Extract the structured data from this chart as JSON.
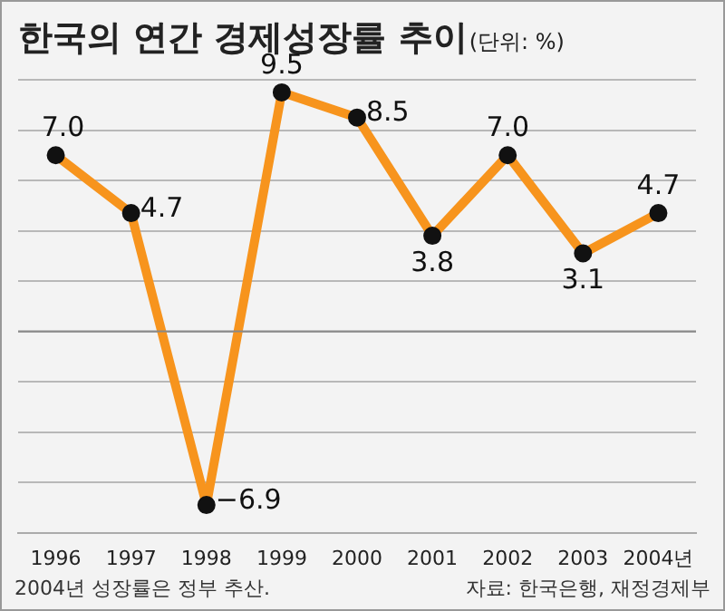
{
  "chart_data": {
    "type": "line",
    "title": "한국의 연간 경제성장률 추이",
    "subtitle": "(단위: %)",
    "categories": [
      "1996",
      "1997",
      "1998",
      "1999",
      "2000",
      "2001",
      "2002",
      "2003",
      "2004년"
    ],
    "series": [
      {
        "color": "#f7941d",
        "values": [
          7.0,
          4.7,
          -6.9,
          9.5,
          8.5,
          3.8,
          7.0,
          3.1,
          4.7
        ],
        "value_labels": [
          "7.0",
          "4.7",
          "−6.9",
          "9.5",
          "8.5",
          "3.8",
          "7.0",
          "3.1",
          "4.7"
        ]
      }
    ],
    "tick_labels": "x",
    "grid": "y",
    "marker": "circle",
    "line_style": "solid",
    "legend": false,
    "ref_lines": [
      {
        "axis": "y",
        "value": 0,
        "color": "#888888"
      }
    ],
    "annotations": [
      "2004년 성장률은 정부 추산.",
      "자료: 한국은행, 재정경제부"
    ]
  }
}
